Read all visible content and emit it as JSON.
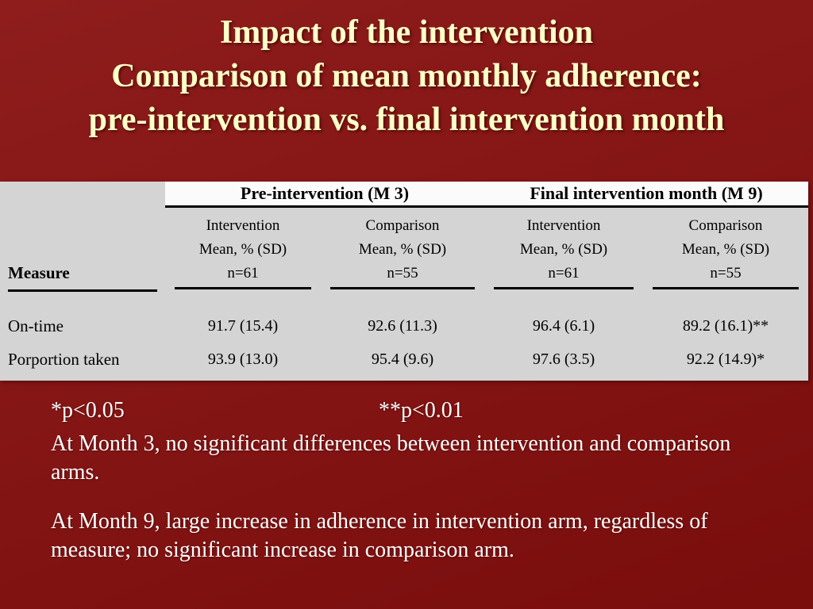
{
  "slide": {
    "title_lines": [
      "Impact of the intervention",
      "Comparison of mean monthly adherence:",
      "pre-intervention vs. final intervention month"
    ]
  },
  "table": {
    "measure_header": "Measure",
    "groups": [
      {
        "label": "Pre-intervention (M 3)"
      },
      {
        "label": "Final intervention month (M 9)"
      }
    ],
    "columns": [
      {
        "arm": "Intervention",
        "stat": "Mean, % (SD)",
        "n": "n=61"
      },
      {
        "arm": "Comparison",
        "stat": "Mean, % (SD)",
        "n": "n=55"
      },
      {
        "arm": "Intervention",
        "stat": "Mean, % (SD)",
        "n": "n=61"
      },
      {
        "arm": "Comparison",
        "stat": "Mean, % (SD)",
        "n": "n=55"
      }
    ],
    "rows": [
      {
        "measure": "On-time",
        "values": [
          "91.7 (15.4)",
          "92.6 (11.3)",
          "96.4 (6.1)",
          "89.2 (16.1)**"
        ]
      },
      {
        "measure": "Porportion taken",
        "values": [
          "93.9 (13.0)",
          "95.4 (9.6)",
          "97.6 (3.5)",
          "92.2 (14.9)*"
        ]
      }
    ]
  },
  "notes": {
    "p1": "*p<0.05",
    "p2": "**p<0.01",
    "month3": "At Month 3, no significant differences between intervention and comparison arms.",
    "month9": "At Month 9, large increase in adherence in intervention arm, regardless of measure; no significant increase in comparison arm."
  },
  "colors": {
    "background": "#870f0e",
    "title_text": "#ffffc8",
    "table_bg": "#d4d4d4",
    "table_header_bg": "#fbfbfb",
    "note_text": "#ffffff"
  }
}
